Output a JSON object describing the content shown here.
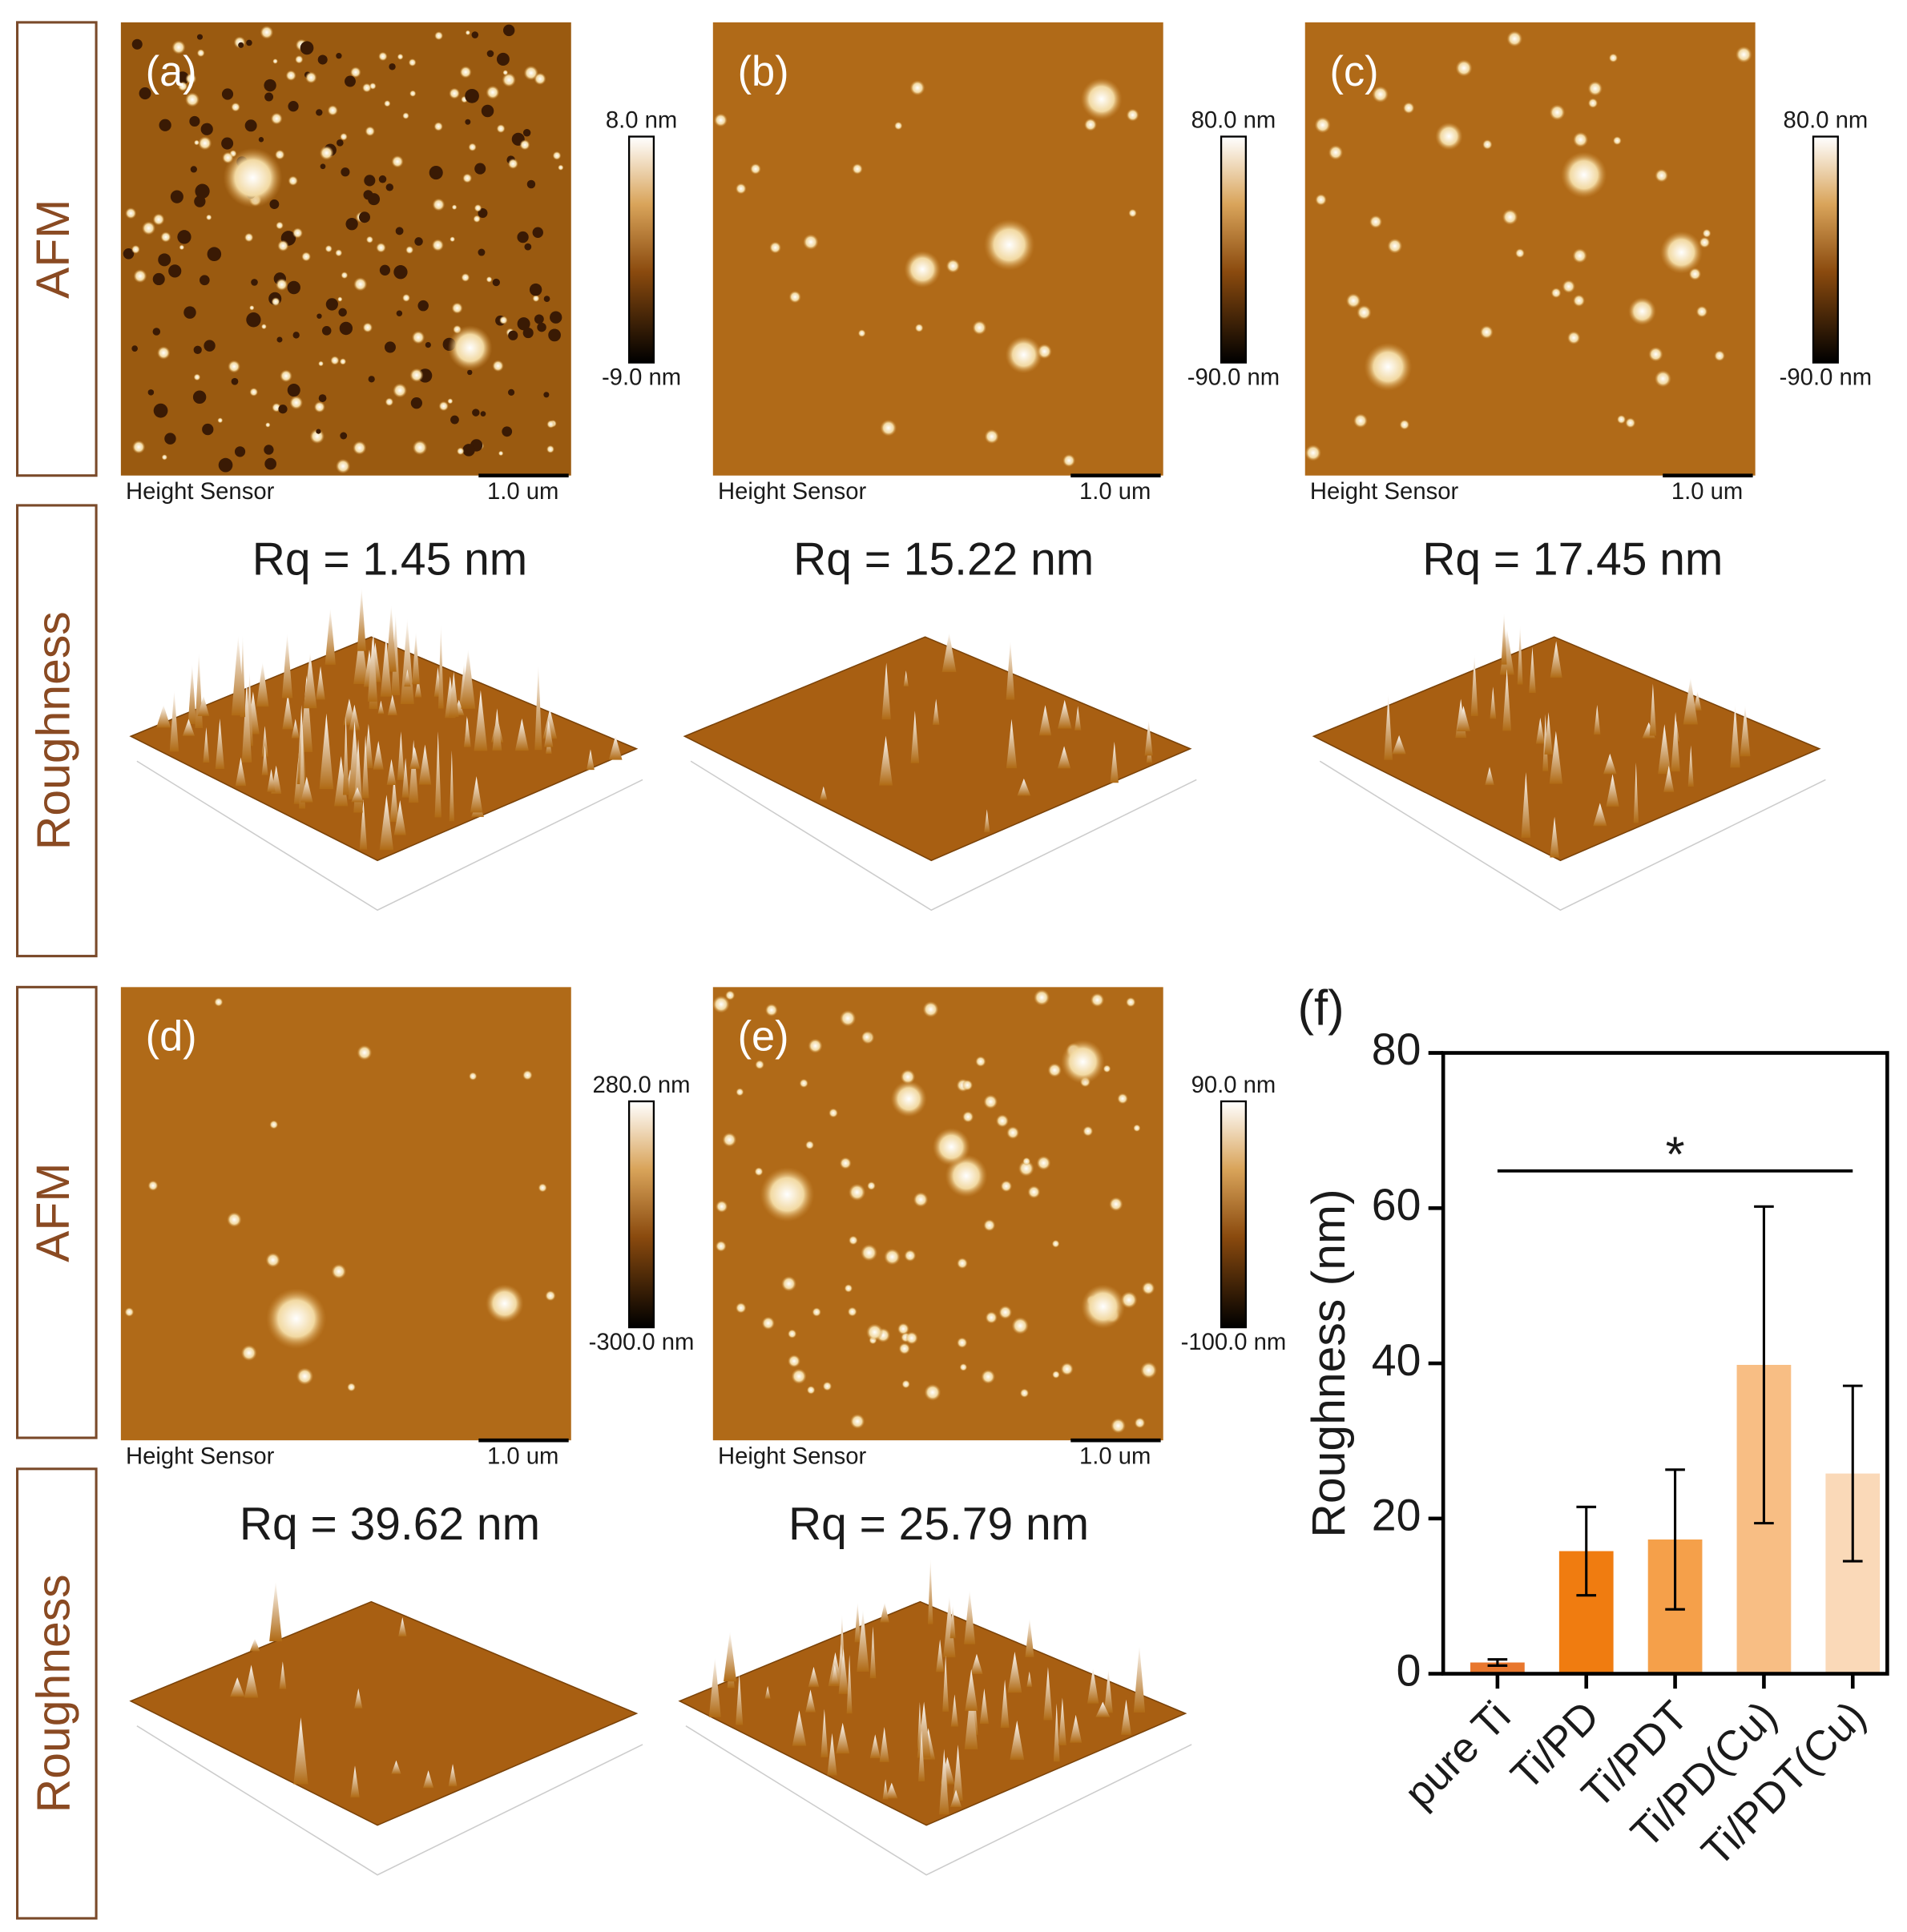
{
  "row_labels": [
    "AFM",
    "Roughness",
    "AFM",
    "Roughness"
  ],
  "panels": [
    {
      "label": "(a)",
      "scale_top": "8.0 nm",
      "scale_bottom": "-9.0 nm",
      "sensor": "Height Sensor",
      "scale_bar": "1.0 um",
      "rq": "Rq = 1.45 nm"
    },
    {
      "label": "(b)",
      "scale_top": "80.0 nm",
      "scale_bottom": "-90.0 nm",
      "sensor": "Height Sensor",
      "scale_bar": "1.0 um",
      "rq": "Rq = 15.22 nm"
    },
    {
      "label": "(c)",
      "scale_top": "80.0 nm",
      "scale_bottom": "-90.0 nm",
      "sensor": "Height Sensor",
      "scale_bar": "1.0 um",
      "rq": "Rq = 17.45 nm"
    },
    {
      "label": "(d)",
      "scale_top": "280.0 nm",
      "scale_bottom": "-300.0 nm",
      "sensor": "Height Sensor",
      "scale_bar": "1.0 um",
      "rq": "Rq = 39.62 nm"
    },
    {
      "label": "(e)",
      "scale_top": "90.0 nm",
      "scale_bottom": "-100.0 nm",
      "sensor": "Height Sensor",
      "scale_bar": "1.0 um",
      "rq": "Rq = 25.79 nm"
    }
  ],
  "chart_data": {
    "type": "bar",
    "label": "(f)",
    "ylabel": "Roughness (nm)",
    "categories": [
      "pure Ti",
      "Ti/PD",
      "Ti/PDT",
      "Ti/PD(Cu)",
      "Ti/PDT(Cu)"
    ],
    "values": [
      1.45,
      15.8,
      17.3,
      39.8,
      25.8
    ],
    "errors": [
      0.4,
      5.7,
      9,
      20.4,
      11.3
    ],
    "colors": [
      "#e8772e",
      "#f07c10",
      "#f5a04a",
      "#f8be84",
      "#fad9b8"
    ],
    "ylim": [
      0,
      80
    ],
    "yticks": [
      0,
      20,
      40,
      60,
      80
    ],
    "annotation": "*"
  }
}
